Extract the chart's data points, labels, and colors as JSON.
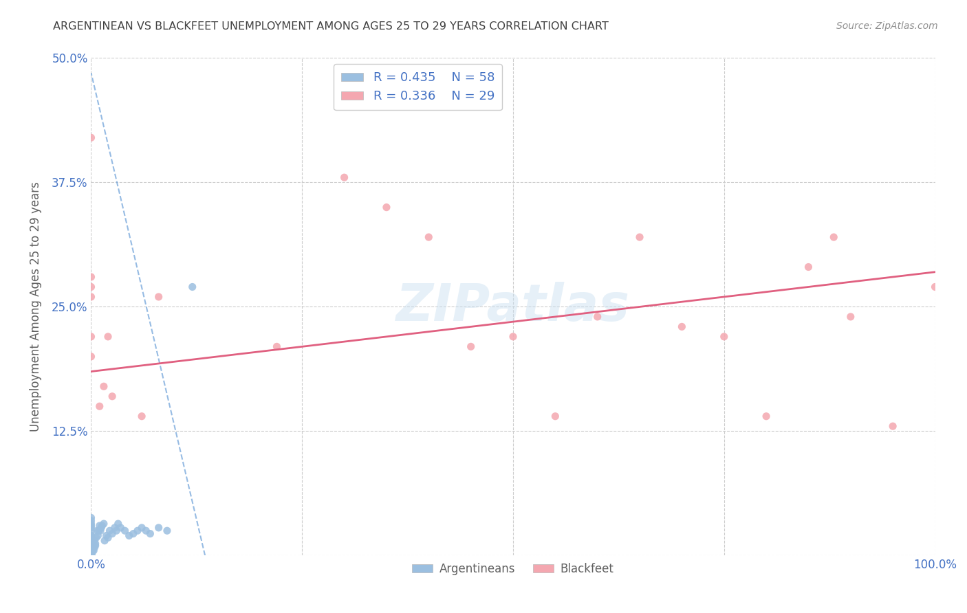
{
  "title": "ARGENTINEAN VS BLACKFEET UNEMPLOYMENT AMONG AGES 25 TO 29 YEARS CORRELATION CHART",
  "source": "Source: ZipAtlas.com",
  "ylabel": "Unemployment Among Ages 25 to 29 years",
  "xlim": [
    0,
    1.0
  ],
  "ylim": [
    0,
    0.5
  ],
  "xticklabels": [
    "0.0%",
    "",
    "",
    "",
    "100.0%"
  ],
  "yticklabels": [
    "",
    "12.5%",
    "25.0%",
    "37.5%",
    "50.0%"
  ],
  "legend_r_argentinean": "R = 0.435",
  "legend_n_argentinean": "N = 58",
  "legend_r_blackfeet": "R = 0.336",
  "legend_n_blackfeet": "N = 29",
  "color_argentinean": "#9bbfe0",
  "color_blackfeet": "#f4a7b0",
  "color_argentinean_line": "#6a9fd8",
  "color_blackfeet_line": "#e06080",
  "color_ticks": "#4472c4",
  "color_grid": "#cccccc",
  "background_color": "#ffffff",
  "watermark": "ZIPatlas",
  "arg_line_x0": 0.0,
  "arg_line_y0": 0.485,
  "arg_line_x1": 0.135,
  "arg_line_y1": 0.0,
  "blk_line_x0": 0.0,
  "blk_line_y0": 0.185,
  "blk_line_x1": 1.0,
  "blk_line_y1": 0.285,
  "arg_x": [
    0.0,
    0.0,
    0.0,
    0.0,
    0.0,
    0.0,
    0.0,
    0.0,
    0.0,
    0.0,
    0.0,
    0.0,
    0.0,
    0.0,
    0.0,
    0.0,
    0.0,
    0.0,
    0.0,
    0.0,
    0.001,
    0.001,
    0.002,
    0.002,
    0.003,
    0.003,
    0.004,
    0.004,
    0.005,
    0.005,
    0.006,
    0.007,
    0.008,
    0.009,
    0.01,
    0.011,
    0.012,
    0.013,
    0.015,
    0.016,
    0.018,
    0.02,
    0.022,
    0.025,
    0.028,
    0.03,
    0.032,
    0.035,
    0.04,
    0.045,
    0.05,
    0.055,
    0.06,
    0.065,
    0.07,
    0.08,
    0.09,
    0.12
  ],
  "arg_y": [
    0.0,
    0.0,
    0.0,
    0.0,
    0.0,
    0.005,
    0.008,
    0.01,
    0.012,
    0.015,
    0.015,
    0.018,
    0.02,
    0.02,
    0.025,
    0.028,
    0.03,
    0.032,
    0.035,
    0.038,
    0.0,
    0.005,
    0.005,
    0.01,
    0.005,
    0.01,
    0.008,
    0.015,
    0.01,
    0.012,
    0.018,
    0.025,
    0.02,
    0.025,
    0.03,
    0.025,
    0.028,
    0.03,
    0.032,
    0.015,
    0.02,
    0.018,
    0.025,
    0.022,
    0.028,
    0.025,
    0.032,
    0.028,
    0.025,
    0.02,
    0.022,
    0.025,
    0.028,
    0.025,
    0.022,
    0.028,
    0.025,
    0.27
  ],
  "blk_x": [
    0.0,
    0.0,
    0.0,
    0.0,
    0.0,
    0.0,
    0.01,
    0.015,
    0.02,
    0.025,
    0.06,
    0.08,
    0.22,
    0.3,
    0.35,
    0.4,
    0.45,
    0.5,
    0.55,
    0.6,
    0.65,
    0.7,
    0.75,
    0.8,
    0.85,
    0.88,
    0.9,
    0.95,
    1.0
  ],
  "blk_y": [
    0.42,
    0.28,
    0.27,
    0.26,
    0.22,
    0.2,
    0.15,
    0.17,
    0.22,
    0.16,
    0.14,
    0.26,
    0.21,
    0.38,
    0.35,
    0.32,
    0.21,
    0.22,
    0.14,
    0.24,
    0.32,
    0.23,
    0.22,
    0.14,
    0.29,
    0.32,
    0.24,
    0.13,
    0.27
  ]
}
